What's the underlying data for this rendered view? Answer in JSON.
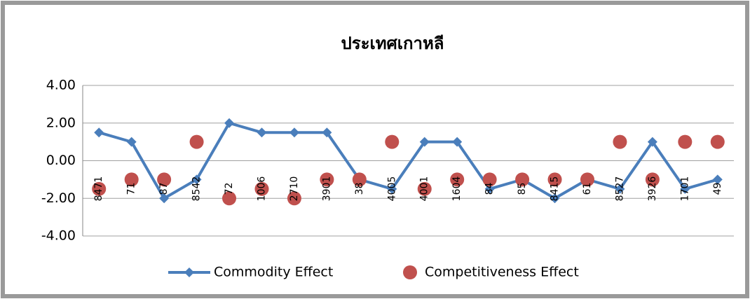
{
  "chart_data": {
    "type": "line-scatter",
    "title": "ประเทศเกาหลี",
    "categories": [
      "8471",
      "71",
      "87",
      "8542",
      "72",
      "1006",
      "2710",
      "3901",
      "38",
      "4005",
      "4001",
      "1604",
      "84",
      "85",
      "8415",
      "61",
      "8527",
      "3926",
      "1701",
      "49"
    ],
    "series": [
      {
        "name": "Commodity Effect",
        "color": "#4a7ebb",
        "style": "line",
        "values": [
          1.5,
          1,
          -2,
          -1,
          2,
          1.5,
          1.5,
          1.5,
          -1,
          -1.5,
          1,
          1,
          -1.5,
          -1,
          -2,
          -1,
          -1.5,
          1,
          -1.5,
          -1
        ]
      },
      {
        "name": "Competitiveness Effect",
        "color": "#c0504d",
        "style": "scatter",
        "values": [
          -1.5,
          -1,
          -1,
          1,
          -2,
          -1.5,
          -2,
          -1,
          -1,
          1,
          -1.5,
          -1,
          -1,
          -1,
          -1,
          -1,
          1,
          -1,
          1,
          1
        ]
      }
    ],
    "ylim": [
      -4,
      4
    ],
    "yticks": [
      {
        "value": -4,
        "label": "-4.00"
      },
      {
        "value": -2,
        "label": "-2.00"
      },
      {
        "value": 0,
        "label": "0.00"
      },
      {
        "value": 2,
        "label": "2.00"
      },
      {
        "value": 4,
        "label": "4.00"
      }
    ],
    "grid": true,
    "legend": "bottom"
  }
}
